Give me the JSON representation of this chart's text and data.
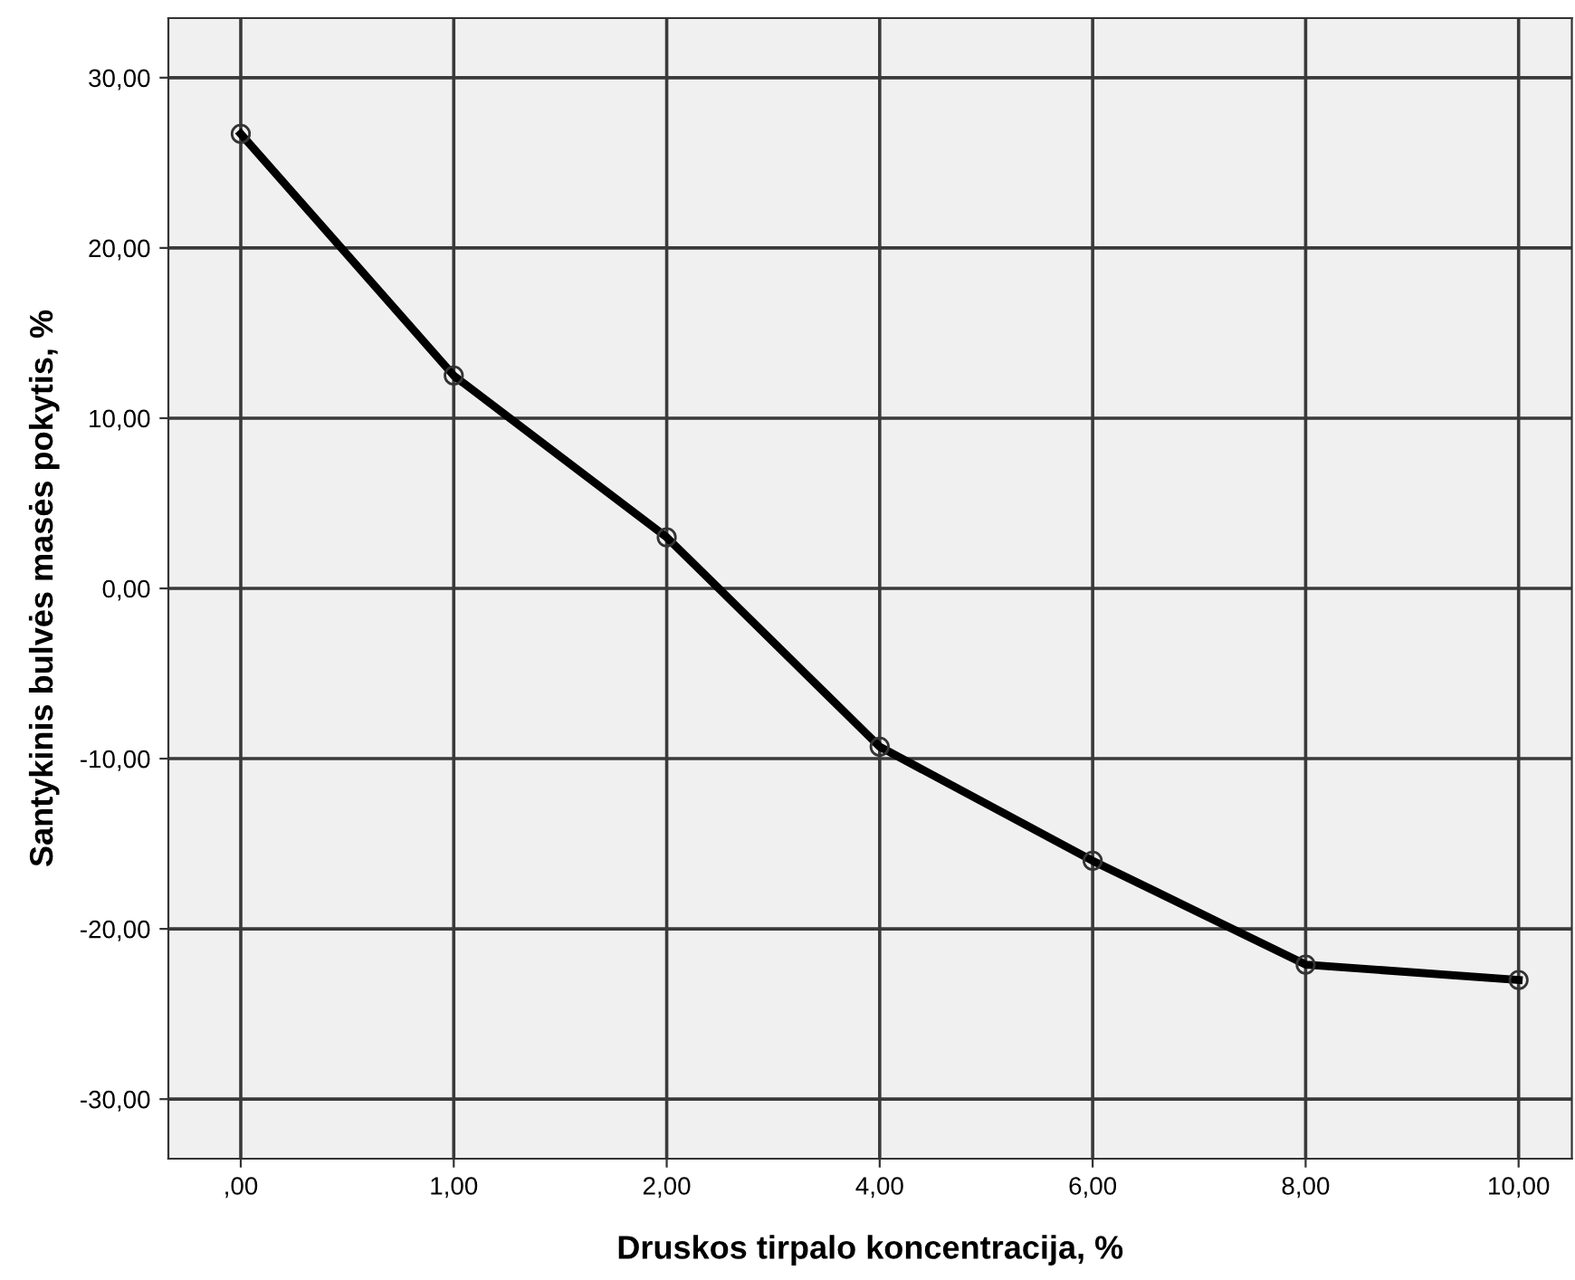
{
  "chart_data": {
    "type": "line",
    "xlabel": "Druskos tirpalo koncentracija, %",
    "ylabel": "Santykinis bulvės masės pokytis, %",
    "categories": [
      ",00",
      "1,00",
      "2,00",
      "4,00",
      "6,00",
      "8,00",
      "10,00"
    ],
    "series": [
      {
        "color": "#000000",
        "values": [
          26.7,
          12.5,
          3.0,
          -9.3,
          -16.0,
          -22.1,
          -23.0
        ]
      }
    ],
    "ylim": [
      -33.5,
      33.5
    ],
    "yticks": [
      {
        "value": -30,
        "label": "-30,00"
      },
      {
        "value": -20,
        "label": "-20,00"
      },
      {
        "value": -10,
        "label": "-10,00"
      },
      {
        "value": 0,
        "label": "0,00"
      },
      {
        "value": 10,
        "label": "10,00"
      },
      {
        "value": 20,
        "label": "20,00"
      },
      {
        "value": 30,
        "label": "30,00"
      }
    ],
    "grid": true,
    "marker": "circle",
    "line_style": "solid",
    "legend": false
  }
}
